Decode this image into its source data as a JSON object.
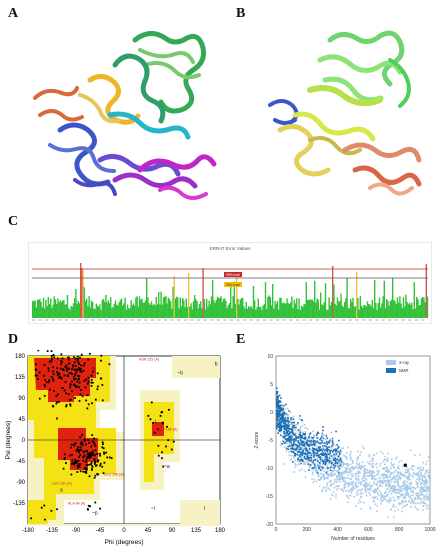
{
  "panels": {
    "a": {
      "letter": "A"
    },
    "b": {
      "letter": "B"
    },
    "c": {
      "letter": "C",
      "title": "ERRAT Error Values",
      "label_99": "99% level",
      "label_95": "95% level"
    },
    "d": {
      "letter": "D"
    },
    "e": {
      "letter": "E"
    }
  },
  "chart_data": [
    {
      "panel": "C",
      "type": "bar",
      "title": "ERRAT Error Values",
      "reference_lines": [
        {
          "label": "99% level",
          "color": "#c62828"
        },
        {
          "label": "95% level",
          "color": "#f2c200"
        }
      ]
    },
    {
      "panel": "D",
      "type": "scatter",
      "xlabel": "Phi (degrees)",
      "ylabel": "Psi (degrees)",
      "xlim": [
        -180,
        180
      ],
      "ylim": [
        -180,
        180
      ],
      "xticks": [
        "-180",
        "-135",
        "-90",
        "-45",
        "0",
        "45",
        "90",
        "135",
        "180"
      ],
      "yticks": [
        "180",
        "135",
        "90",
        "45",
        "0",
        "-45",
        "-90",
        "-135"
      ],
      "region_labels": [
        "b",
        "A",
        "L",
        "p",
        "a",
        "l",
        "b",
        "~b",
        "~a",
        "~l",
        "~p"
      ],
      "residue_labels": [
        "ASN 125 (A)",
        "GLU 208 (A)",
        "ASP 180 (A)",
        "LEU 161 (A)",
        "ALA 84 (A)"
      ]
    },
    {
      "panel": "E",
      "type": "scatter",
      "xlabel": "Number of residues",
      "ylabel": "Z-score",
      "xlim": [
        0,
        1000
      ],
      "ylim": [
        -20,
        10
      ],
      "xticks": [
        "0",
        "200",
        "400",
        "600",
        "800",
        "1000"
      ],
      "yticks": [
        "10",
        "5",
        "0",
        "-5",
        "-10",
        "-15",
        "-20"
      ],
      "series": [
        {
          "name": "X-ray",
          "color": "#a9c9e8"
        },
        {
          "name": "NMR",
          "color": "#1f6fb4"
        }
      ],
      "highlight": {
        "x": 840,
        "y": -9.5
      }
    }
  ]
}
